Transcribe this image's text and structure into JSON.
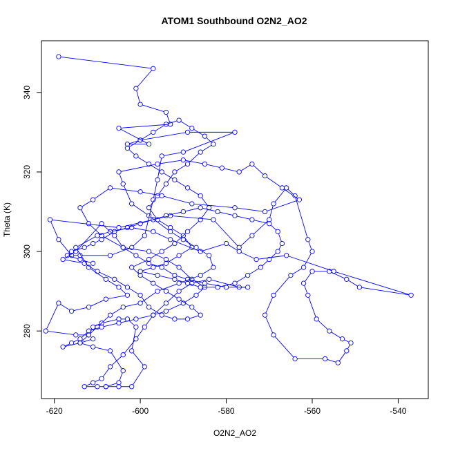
{
  "chart_data": {
    "type": "line",
    "title": "ATOM1 Southbound O2N2_AO2",
    "xlabel": "O2N2_AO2",
    "ylabel": "Theta (K)",
    "xlim": [
      -623,
      -533
    ],
    "ylim": [
      263,
      353
    ],
    "x_ticks": [
      -620,
      -600,
      -580,
      -560,
      -540
    ],
    "y_ticks": [
      280,
      300,
      320,
      340
    ],
    "grid": false,
    "legend": "none",
    "marker": "open-circle",
    "series_color": "#0000ff",
    "series": [
      {
        "points": [
          [
            -619,
            349
          ],
          [
            -597,
            346
          ],
          [
            -601,
            341
          ],
          [
            -600,
            337
          ],
          [
            -594,
            335
          ],
          [
            -593,
            332
          ],
          [
            -605,
            331
          ],
          [
            -598,
            327
          ],
          [
            -603,
            327
          ],
          [
            -600,
            328
          ],
          [
            -589,
            330
          ],
          [
            -578,
            330
          ],
          [
            -590,
            325
          ],
          [
            -595,
            324
          ],
          [
            -596,
            318
          ],
          [
            -597,
            313
          ],
          [
            -599,
            304
          ],
          [
            -602,
            301
          ],
          [
            -607,
            299
          ],
          [
            -614,
            299
          ],
          [
            -616,
            299
          ],
          [
            -619,
            303
          ],
          [
            -621,
            308
          ],
          [
            -605,
            306
          ],
          [
            -593,
            309
          ],
          [
            -583,
            308
          ],
          [
            -577,
            301
          ],
          [
            -574,
            304
          ],
          [
            -570,
            308
          ],
          [
            -569,
            312
          ],
          [
            -566,
            316
          ],
          [
            -564,
            314
          ],
          [
            -561,
            303
          ],
          [
            -560,
            300
          ],
          [
            -562,
            296
          ],
          [
            -565,
            294
          ],
          [
            -569,
            289
          ],
          [
            -571,
            284
          ],
          [
            -569,
            279
          ],
          [
            -564,
            273
          ],
          [
            -557,
            273
          ],
          [
            -554,
            272
          ],
          [
            -552,
            275
          ],
          [
            -551,
            277
          ],
          [
            -553,
            278
          ],
          [
            -556,
            280
          ],
          [
            -559,
            283
          ],
          [
            -561,
            289
          ],
          [
            -562,
            292
          ],
          [
            -560,
            295
          ],
          [
            -556,
            295
          ],
          [
            -552,
            293
          ],
          [
            -549,
            291
          ],
          [
            -537,
            289
          ],
          [
            -555,
            295
          ],
          [
            -566,
            299
          ],
          [
            -573,
            298
          ],
          [
            -577,
            300
          ],
          [
            -580,
            302
          ],
          [
            -586,
            300
          ],
          [
            -593,
            303
          ],
          [
            -597,
            305
          ],
          [
            -602,
            306
          ],
          [
            -607,
            305
          ],
          [
            -610,
            304
          ],
          [
            -615,
            301
          ],
          [
            -612,
            296
          ],
          [
            -608,
            293
          ],
          [
            -605,
            291
          ],
          [
            -603,
            289
          ],
          [
            -608,
            288
          ],
          [
            -612,
            286
          ],
          [
            -616,
            285
          ],
          [
            -619,
            287
          ],
          [
            -622,
            280
          ],
          [
            -615,
            279
          ],
          [
            -612,
            279
          ],
          [
            -610,
            281
          ],
          [
            -607,
            284
          ],
          [
            -604,
            286
          ],
          [
            -600,
            287
          ],
          [
            -596,
            290
          ],
          [
            -591,
            292
          ],
          [
            -586,
            294
          ],
          [
            -583,
            296
          ],
          [
            -584,
            299
          ],
          [
            -587,
            301
          ],
          [
            -590,
            303
          ],
          [
            -593,
            305
          ],
          [
            -598,
            309
          ],
          [
            -602,
            312
          ],
          [
            -604,
            317
          ],
          [
            -605,
            320
          ],
          [
            -596,
            322
          ],
          [
            -590,
            323
          ],
          [
            -585,
            322
          ],
          [
            -581,
            321
          ],
          [
            -577,
            320
          ],
          [
            -574,
            322
          ],
          [
            -571,
            319
          ],
          [
            -567,
            316
          ],
          [
            -563,
            313
          ],
          [
            -571,
            310
          ],
          [
            -578,
            311
          ],
          [
            -588,
            312
          ],
          [
            -595,
            314
          ],
          [
            -600,
            315
          ],
          [
            -607,
            316
          ],
          [
            -611,
            313
          ],
          [
            -614,
            311
          ],
          [
            -612,
            307
          ],
          [
            -609,
            304
          ],
          [
            -604,
            301
          ],
          [
            -598,
            300
          ],
          [
            -594,
            298
          ],
          [
            -591,
            296
          ],
          [
            -588,
            293
          ],
          [
            -585,
            291
          ],
          [
            -587,
            289
          ],
          [
            -590,
            287
          ],
          [
            -594,
            285
          ],
          [
            -597,
            284
          ],
          [
            -601,
            283
          ],
          [
            -605,
            282
          ],
          [
            -609,
            281
          ],
          [
            -612,
            280
          ],
          [
            -614,
            278
          ],
          [
            -616,
            277
          ],
          [
            -618,
            276
          ],
          [
            -614,
            277
          ],
          [
            -611,
            278
          ]
        ]
      },
      {
        "points": [
          [
            -608,
            266
          ],
          [
            -605,
            266
          ],
          [
            -602,
            266
          ],
          [
            -599,
            271
          ],
          [
            -602,
            275
          ],
          [
            -601,
            281
          ],
          [
            -603,
            283
          ],
          [
            -605,
            283
          ],
          [
            -609,
            282
          ],
          [
            -611,
            281
          ],
          [
            -612,
            279
          ],
          [
            -614,
            277
          ],
          [
            -611,
            276
          ],
          [
            -607,
            275
          ],
          [
            -604,
            270
          ],
          [
            -605,
            267
          ],
          [
            -608,
            266
          ],
          [
            -610,
            266
          ],
          [
            -613,
            266
          ],
          [
            -611,
            267
          ],
          [
            -609,
            268
          ],
          [
            -607,
            271
          ],
          [
            -604,
            274
          ],
          [
            -601,
            278
          ],
          [
            -599,
            281
          ],
          [
            -597,
            284
          ],
          [
            -594,
            287
          ],
          [
            -591,
            290
          ],
          [
            -588,
            292
          ],
          [
            -584,
            293
          ],
          [
            -577,
            291
          ],
          [
            -575,
            291
          ],
          [
            -580,
            291
          ],
          [
            -585,
            292
          ],
          [
            -589,
            293
          ],
          [
            -592,
            294
          ],
          [
            -595,
            296
          ],
          [
            -598,
            297
          ],
          [
            -601,
            299
          ],
          [
            -604,
            301
          ],
          [
            -606,
            304
          ],
          [
            -609,
            307
          ],
          [
            -615,
            300
          ],
          [
            -618,
            298
          ],
          [
            -613,
            297
          ],
          [
            -610,
            295
          ],
          [
            -606,
            293
          ],
          [
            -603,
            291
          ],
          [
            -600,
            289
          ],
          [
            -598,
            286
          ],
          [
            -595,
            284
          ],
          [
            -592,
            283
          ],
          [
            -589,
            283
          ],
          [
            -586,
            284
          ],
          [
            -588,
            286
          ],
          [
            -591,
            288
          ],
          [
            -594,
            290
          ],
          [
            -597,
            292
          ],
          [
            -600,
            294
          ],
          [
            -602,
            296
          ],
          [
            -598,
            298
          ],
          [
            -595,
            300
          ],
          [
            -592,
            302
          ],
          [
            -589,
            305
          ],
          [
            -586,
            308
          ],
          [
            -584,
            311
          ],
          [
            -586,
            314
          ],
          [
            -589,
            316
          ],
          [
            -592,
            318
          ],
          [
            -595,
            320
          ],
          [
            -598,
            322
          ],
          [
            -601,
            324
          ],
          [
            -603,
            326
          ],
          [
            -600,
            328
          ],
          [
            -597,
            330
          ],
          [
            -594,
            332
          ],
          [
            -591,
            333
          ],
          [
            -588,
            331
          ],
          [
            -585,
            329
          ],
          [
            -583,
            327
          ],
          [
            -586,
            325
          ],
          [
            -589,
            322
          ],
          [
            -592,
            320
          ],
          [
            -594,
            317
          ],
          [
            -596,
            314
          ],
          [
            -598,
            311
          ],
          [
            -596,
            308
          ],
          [
            -593,
            306
          ],
          [
            -590,
            304
          ],
          [
            -588,
            301
          ],
          [
            -591,
            299
          ],
          [
            -594,
            297
          ],
          [
            -597,
            296
          ],
          [
            -600,
            295
          ],
          [
            -596,
            294
          ],
          [
            -592,
            293
          ],
          [
            -589,
            292
          ],
          [
            -586,
            291
          ],
          [
            -582,
            291
          ],
          [
            -578,
            292
          ],
          [
            -575,
            294
          ],
          [
            -572,
            296
          ],
          [
            -570,
            298
          ],
          [
            -568,
            300
          ],
          [
            -567,
            302
          ],
          [
            -568,
            305
          ],
          [
            -570,
            307
          ],
          [
            -574,
            308
          ],
          [
            -578,
            309
          ],
          [
            -582,
            310
          ],
          [
            -586,
            311
          ],
          [
            -590,
            310
          ],
          [
            -594,
            309
          ],
          [
            -597,
            308
          ],
          [
            -600,
            307
          ],
          [
            -603,
            306
          ],
          [
            -606,
            305
          ],
          [
            -609,
            303
          ],
          [
            -611,
            302
          ],
          [
            -613,
            301
          ],
          [
            -616,
            300
          ],
          [
            -617,
            299
          ],
          [
            -614,
            298
          ],
          [
            -611,
            297
          ]
        ]
      }
    ]
  }
}
